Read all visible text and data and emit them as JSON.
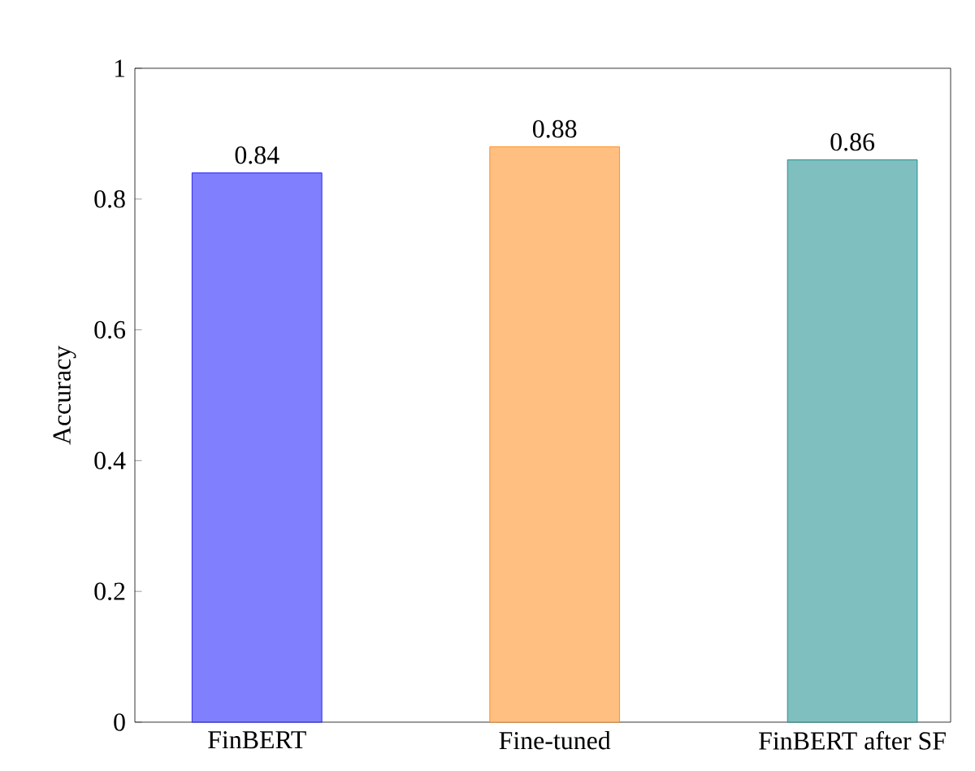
{
  "chart_data": {
    "type": "bar",
    "ylabel": "Accuracy",
    "categories": [
      "FinBERT",
      "Fine-tuned",
      "FinBERT after SF"
    ],
    "values": [
      0.84,
      0.88,
      0.86
    ],
    "colors": [
      "#8080ff",
      "#ffbf80",
      "#80bfbf"
    ],
    "ylim": [
      0,
      1
    ],
    "yticks": [
      0,
      0.2,
      0.4,
      0.6,
      0.8,
      1
    ],
    "data_labels": true
  }
}
